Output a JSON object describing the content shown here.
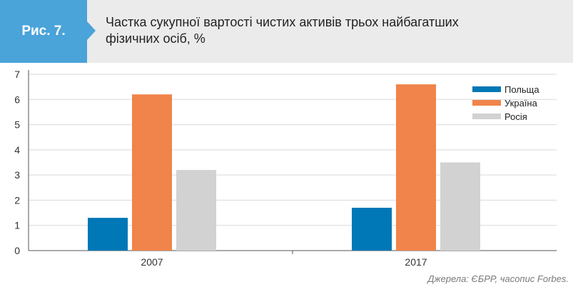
{
  "header": {
    "figure_label": "Рис. 7.",
    "title": "Частка сукупної вартості чистих активів трьох найбагатших фізичних осіб, %"
  },
  "colors": {
    "header_bg": "#ebebeb",
    "badge_bg": "#4aa3d9",
    "poland": "#0077b6",
    "ukraine": "#f0844a",
    "russia": "#d2d2d2"
  },
  "chart_data": {
    "type": "bar",
    "title": "Частка сукупної вартості чистих активів трьох найбагатших фізичних осіб, %",
    "categories": [
      "2007",
      "2017"
    ],
    "series": [
      {
        "name": "Польща",
        "values": [
          1.3,
          1.7
        ]
      },
      {
        "name": "Україна",
        "values": [
          6.2,
          6.6
        ]
      },
      {
        "name": "Росія",
        "values": [
          3.2,
          3.5
        ]
      }
    ],
    "ylim": [
      0,
      7
    ],
    "yticks": [
      0,
      1,
      2,
      3,
      4,
      5,
      6,
      7
    ],
    "grid": true,
    "legend": "top-right"
  },
  "source": "Джерела: ЄБРР, часопис Forbes."
}
